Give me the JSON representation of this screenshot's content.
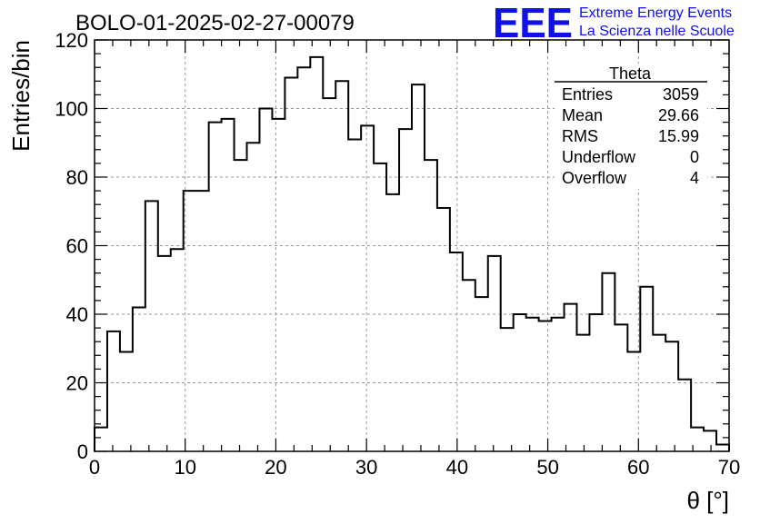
{
  "chart_data": {
    "type": "bar",
    "title": "BOLO-01-2025-02-27-00079",
    "xlabel": "θ [°]",
    "ylabel": "Entries/bin",
    "xlim": [
      0,
      70
    ],
    "ylim": [
      0,
      120
    ],
    "x_ticks": [
      0,
      10,
      20,
      30,
      40,
      50,
      60,
      70
    ],
    "y_ticks": [
      0,
      20,
      40,
      60,
      80,
      100,
      120
    ],
    "grid": true,
    "bin_width": 1.4,
    "values": [
      7,
      35,
      29,
      42,
      73,
      57,
      59,
      76,
      76,
      96,
      97,
      85,
      90,
      100,
      97,
      109,
      112,
      115,
      103,
      108,
      91,
      95,
      84,
      75,
      94,
      107,
      85,
      71,
      58,
      50,
      45,
      57,
      36,
      40,
      39,
      38,
      39,
      43,
      34,
      40,
      52,
      37,
      29,
      48,
      34,
      32,
      21,
      7,
      6,
      2
    ],
    "stats_box": {
      "title": "Theta",
      "rows": [
        {
          "label": "Entries",
          "value": "3059"
        },
        {
          "label": "Mean",
          "value": "29.66"
        },
        {
          "label": "RMS",
          "value": "15.99"
        },
        {
          "label": "Underflow",
          "value": "0"
        },
        {
          "label": "Overflow",
          "value": "4"
        }
      ]
    }
  },
  "logo": {
    "mark": "EEE",
    "line1": "Extreme Energy Events",
    "line2": "La Scienza nelle Scuole",
    "color": "#1010e8"
  }
}
